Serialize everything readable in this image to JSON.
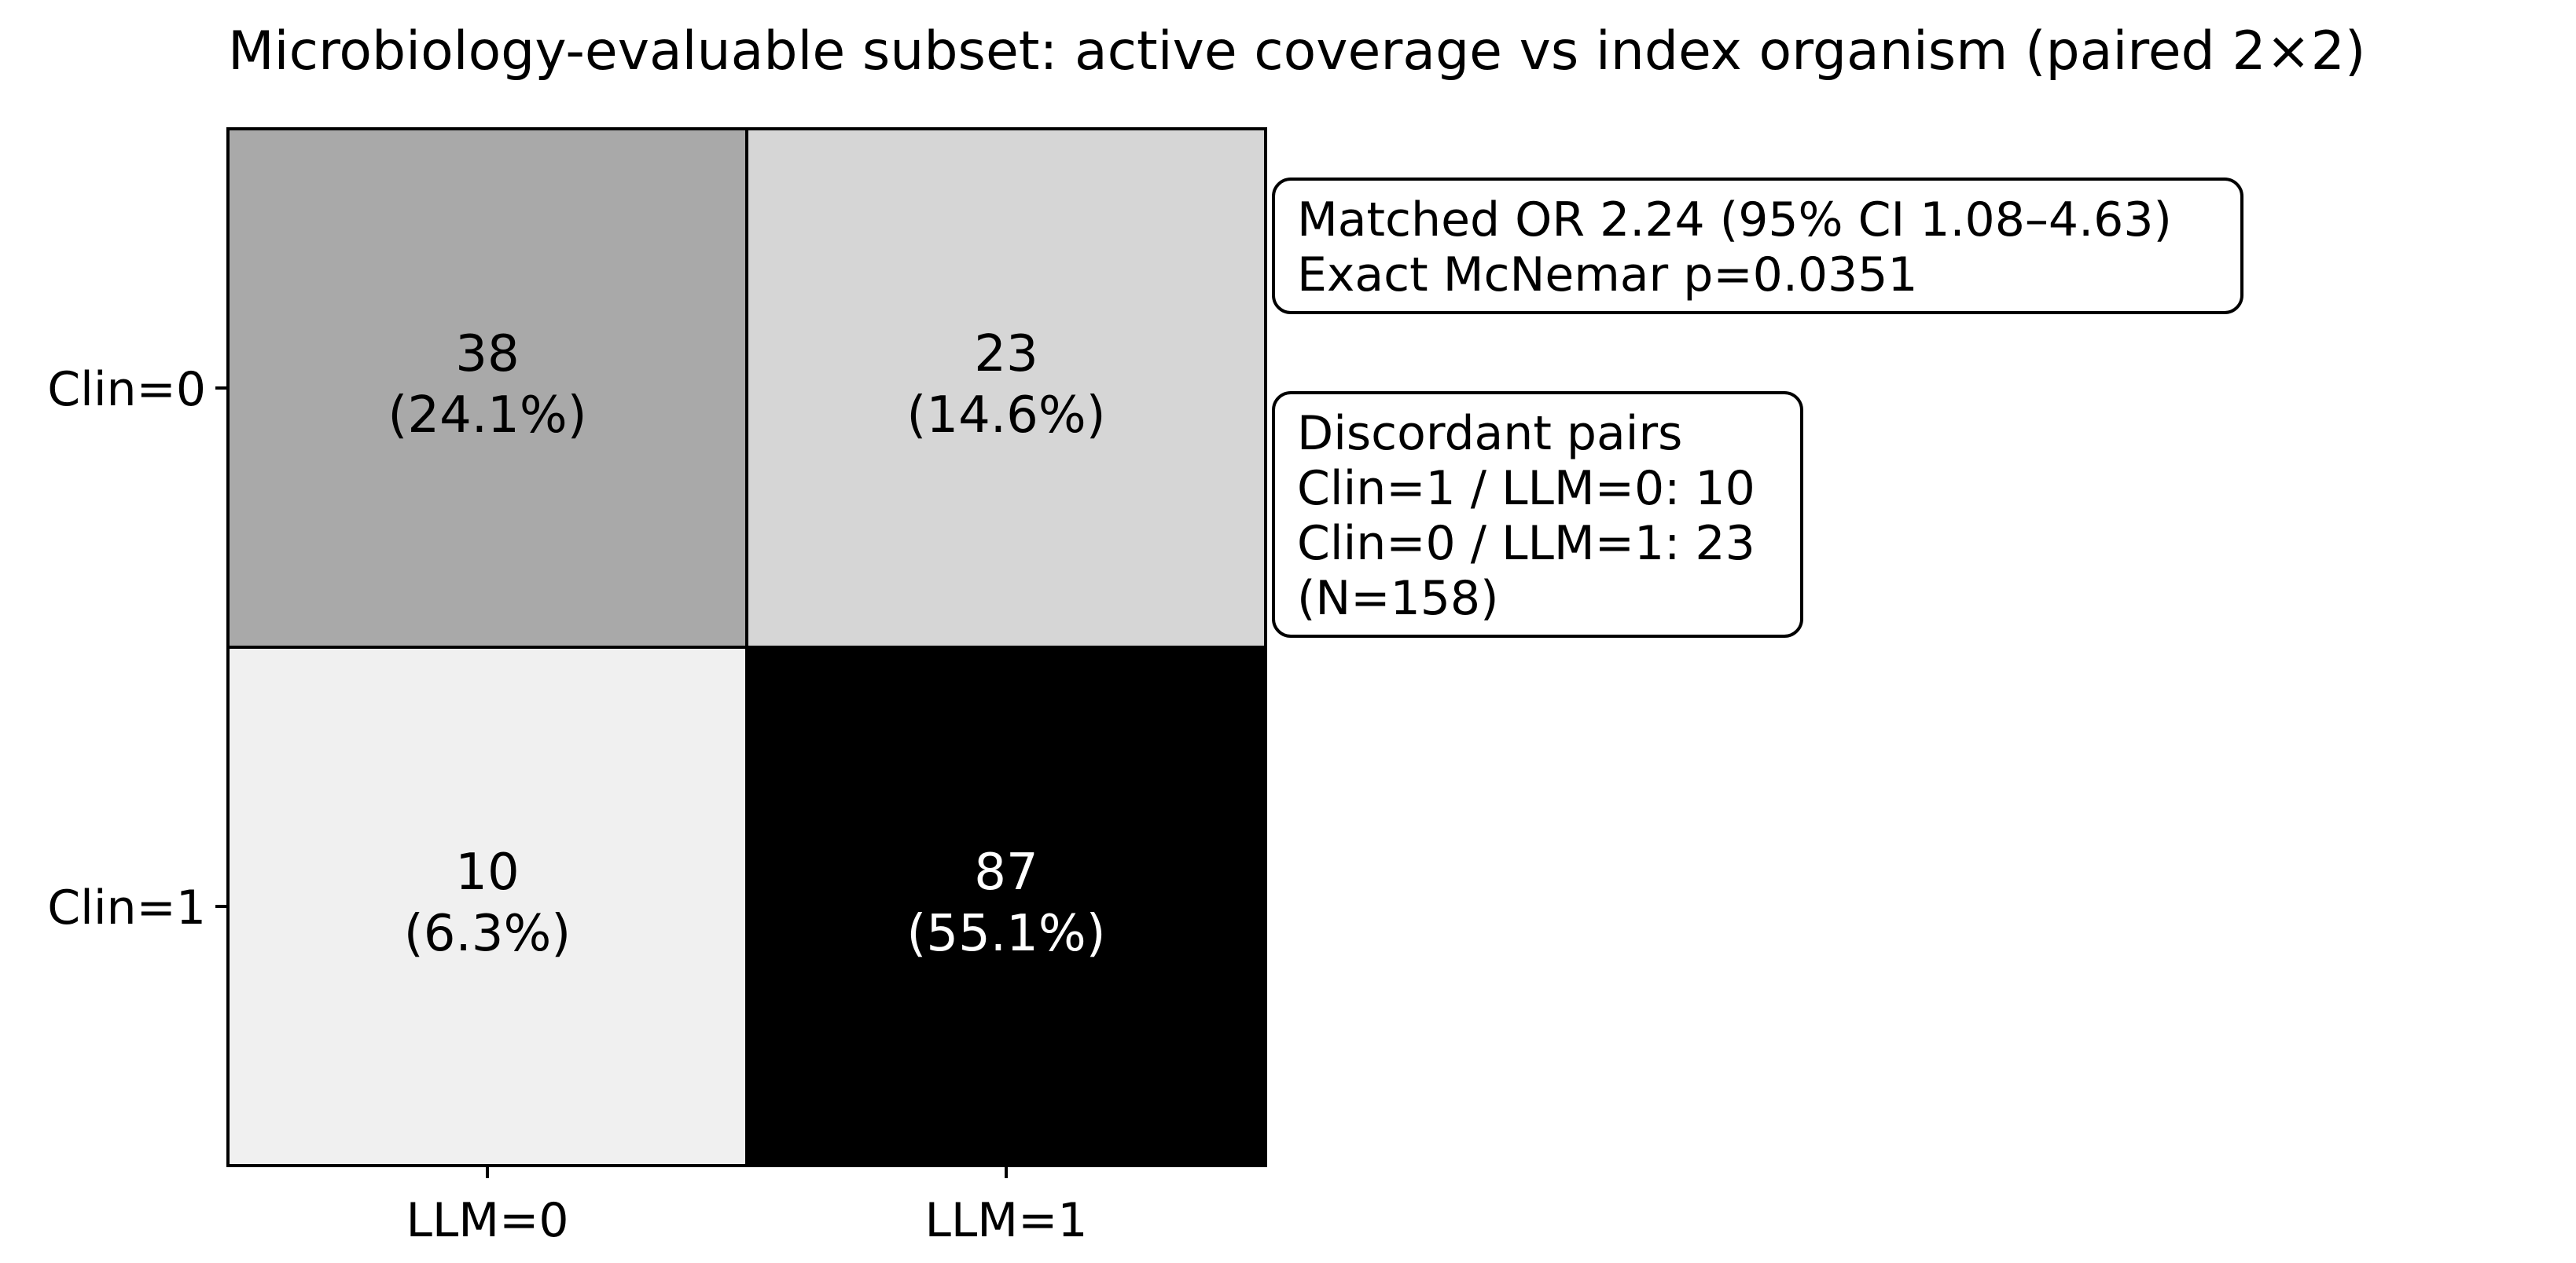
{
  "chart_data": {
    "type": "heatmap",
    "title": "Microbiology-evaluable subset: active coverage vs index organism (paired 2×2)",
    "rows": [
      "Clin=0",
      "Clin=1"
    ],
    "columns": [
      "LLM=0",
      "LLM=1"
    ],
    "cells": [
      [
        {
          "count": "38",
          "percent": "(24.1%)",
          "value": 38,
          "fill": "#a9a9a9",
          "text_color": "#000000"
        },
        {
          "count": "23",
          "percent": "(14.6%)",
          "value": 23,
          "fill": "#d6d6d6",
          "text_color": "#000000"
        }
      ],
      [
        {
          "count": "10",
          "percent": "(6.3%)",
          "value": 10,
          "fill": "#f0f0f0",
          "text_color": "#000000"
        },
        {
          "count": "87",
          "percent": "(55.1%)",
          "value": 87,
          "fill": "#000000",
          "text_color": "#ffffff"
        }
      ]
    ],
    "annotations": [
      {
        "lines": [
          "Matched OR 2.24 (95% CI 1.08–4.63)",
          "Exact McNemar p=0.0351"
        ]
      },
      {
        "lines": [
          "Discordant pairs",
          "Clin=1 / LLM=0: 10",
          "Clin=0 / LLM=1: 23",
          "(N=158)"
        ]
      }
    ],
    "colormap": "Greys",
    "grid": false
  }
}
